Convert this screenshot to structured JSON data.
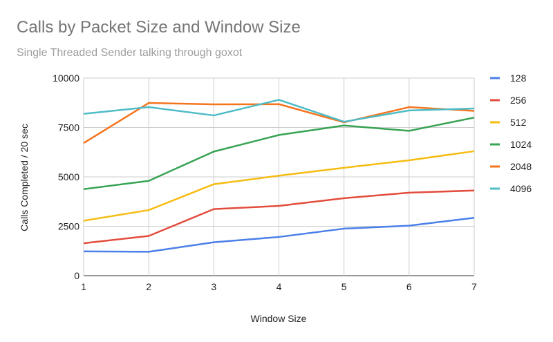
{
  "chart_data": {
    "type": "line",
    "title": "Calls by Packet Size and Window Size",
    "subtitle": "Single Threaded Sender talking through goxot",
    "xlabel": "Window Size",
    "ylabel": "Calls Completed / 20 sec",
    "x": [
      1,
      2,
      3,
      4,
      5,
      6,
      7
    ],
    "xlim": [
      1,
      7
    ],
    "ylim": [
      0,
      10000
    ],
    "yticks": [
      0,
      2500,
      5000,
      7500,
      10000
    ],
    "ytick_labels": [
      "0",
      "2500",
      "5000",
      "7500",
      "10000"
    ],
    "xtick_labels": [
      "1",
      "2",
      "3",
      "4",
      "5",
      "6",
      "7"
    ],
    "grid": true,
    "legend_position": "right",
    "series": [
      {
        "name": "128",
        "color": "#4a7ee8",
        "values": [
          1230,
          1210,
          1690,
          1960,
          2380,
          2530,
          2930
        ]
      },
      {
        "name": "256",
        "color": "#e34c3c",
        "values": [
          1640,
          2010,
          3370,
          3530,
          3920,
          4200,
          4310
        ]
      },
      {
        "name": "512",
        "color": "#f5bc12",
        "values": [
          2780,
          3320,
          4630,
          5060,
          5460,
          5840,
          6300
        ]
      },
      {
        "name": "1024",
        "color": "#37a353",
        "values": [
          4380,
          4800,
          6280,
          7120,
          7600,
          7330,
          8000
        ]
      },
      {
        "name": "2048",
        "color": "#f5741e",
        "values": [
          6710,
          8740,
          8670,
          8680,
          7760,
          8530,
          8340
        ]
      },
      {
        "name": "4096",
        "color": "#4ebcc6",
        "values": [
          8190,
          8530,
          8110,
          8900,
          7790,
          8360,
          8460
        ]
      }
    ]
  }
}
